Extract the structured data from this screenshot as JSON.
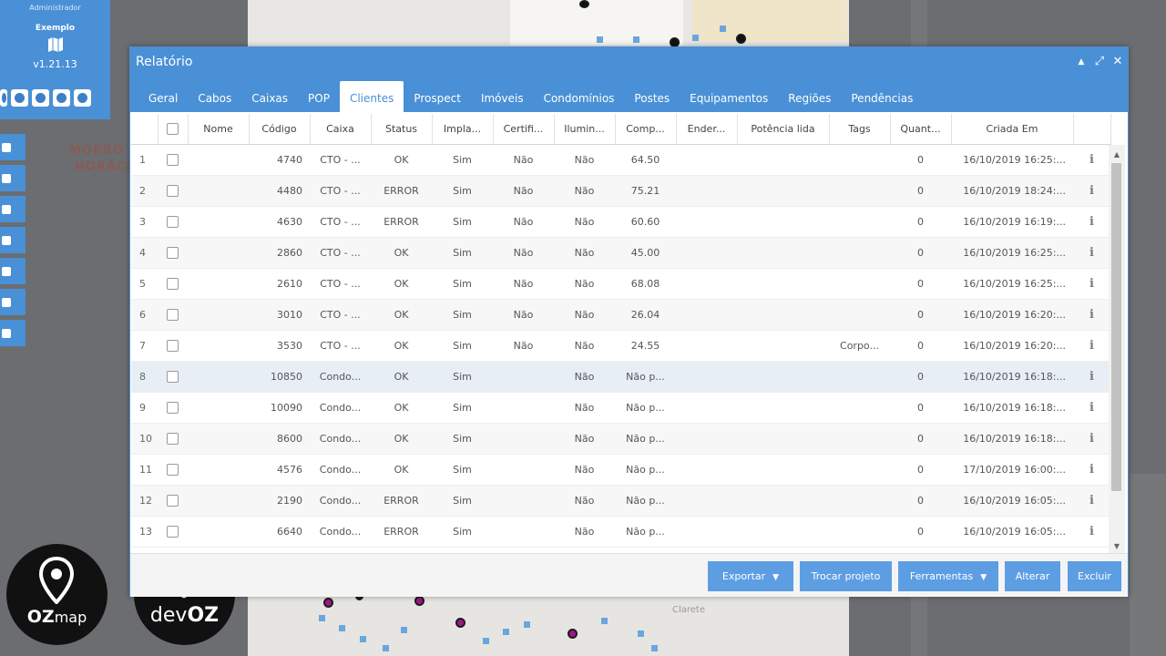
{
  "left_panel": {
    "user_role": "Administrador",
    "project_name": "Exemplo",
    "version": "v1.21.13",
    "icons": [
      "refresh-icon",
      "settings-icon",
      "help-icon",
      "chat-icon",
      "logout-icon"
    ]
  },
  "side_tools": [
    "plus-icon",
    "menu-icon",
    "layers-icon",
    "cloud-icon",
    "pin-icon",
    "truck-icon",
    "wifi-icon"
  ],
  "map": {
    "label_1": "MORRO D",
    "label_2": "HORÁCI",
    "label_3": "Clarete"
  },
  "logos": {
    "ozmap_text_1": "OZ",
    "ozmap_text_2": "map",
    "devoz_text_1": "dev",
    "devoz_text_2": "OZ"
  },
  "dialog": {
    "title": "Relatório",
    "controls": {
      "minimize": "▲",
      "expand": "⤢",
      "close": "✕"
    },
    "tabs": [
      "Geral",
      "Cabos",
      "Caixas",
      "POP",
      "Clientes",
      "Prospect",
      "Imóveis",
      "Condomínios",
      "Postes",
      "Equipamentos",
      "Regiões",
      "Pendências"
    ],
    "active_tab": "Clientes",
    "columns": [
      "",
      "",
      "Nome",
      "Código",
      "Caixa",
      "Status",
      "Impla...",
      "Certifi...",
      "Ilumin...",
      "Comp...",
      "Ender...",
      "Potência lida",
      "Tags",
      "Quant...",
      "Criada Em",
      ""
    ],
    "rows": [
      {
        "n": "1",
        "nome": "",
        "codigo": "4740",
        "caixa": "CTO - ...",
        "status": "OK",
        "impl": "Sim",
        "cert": "Não",
        "ilum": "Não",
        "comp": "64.50",
        "ender": "",
        "potencia": "",
        "tags": "",
        "quant": "0",
        "criada": "16/10/2019 16:25:..."
      },
      {
        "n": "2",
        "nome": "",
        "codigo": "4480",
        "caixa": "CTO - ...",
        "status": "ERROR",
        "impl": "Sim",
        "cert": "Não",
        "ilum": "Não",
        "comp": "75.21",
        "ender": "",
        "potencia": "",
        "tags": "",
        "quant": "0",
        "criada": "16/10/2019 18:24:..."
      },
      {
        "n": "3",
        "nome": "",
        "codigo": "4630",
        "caixa": "CTO - ...",
        "status": "ERROR",
        "impl": "Sim",
        "cert": "Não",
        "ilum": "Não",
        "comp": "60.60",
        "ender": "",
        "potencia": "",
        "tags": "",
        "quant": "0",
        "criada": "16/10/2019 16:19:..."
      },
      {
        "n": "4",
        "nome": "",
        "codigo": "2860",
        "caixa": "CTO - ...",
        "status": "OK",
        "impl": "Sim",
        "cert": "Não",
        "ilum": "Não",
        "comp": "45.00",
        "ender": "",
        "potencia": "",
        "tags": "",
        "quant": "0",
        "criada": "16/10/2019 16:25:..."
      },
      {
        "n": "5",
        "nome": "",
        "codigo": "2610",
        "caixa": "CTO - ...",
        "status": "OK",
        "impl": "Sim",
        "cert": "Não",
        "ilum": "Não",
        "comp": "68.08",
        "ender": "",
        "potencia": "",
        "tags": "",
        "quant": "0",
        "criada": "16/10/2019 16:25:..."
      },
      {
        "n": "6",
        "nome": "",
        "codigo": "3010",
        "caixa": "CTO - ...",
        "status": "OK",
        "impl": "Sim",
        "cert": "Não",
        "ilum": "Não",
        "comp": "26.04",
        "ender": "",
        "potencia": "",
        "tags": "",
        "quant": "0",
        "criada": "16/10/2019 16:20:..."
      },
      {
        "n": "7",
        "nome": "",
        "codigo": "3530",
        "caixa": "CTO - ...",
        "status": "OK",
        "impl": "Sim",
        "cert": "Não",
        "ilum": "Não",
        "comp": "24.55",
        "ender": "",
        "potencia": "",
        "tags": "Corpo...",
        "quant": "0",
        "criada": "16/10/2019 16:20:..."
      },
      {
        "n": "8",
        "nome": "",
        "codigo": "10850",
        "caixa": "Condo...",
        "status": "OK",
        "impl": "Sim",
        "cert": "",
        "ilum": "Não",
        "comp": "Não p...",
        "ender": "",
        "potencia": "",
        "tags": "",
        "quant": "0",
        "criada": "16/10/2019 16:18:..."
      },
      {
        "n": "9",
        "nome": "",
        "codigo": "10090",
        "caixa": "Condo...",
        "status": "OK",
        "impl": "Sim",
        "cert": "",
        "ilum": "Não",
        "comp": "Não p...",
        "ender": "",
        "potencia": "",
        "tags": "",
        "quant": "0",
        "criada": "16/10/2019 16:18:..."
      },
      {
        "n": "10",
        "nome": "",
        "codigo": "8600",
        "caixa": "Condo...",
        "status": "OK",
        "impl": "Sim",
        "cert": "",
        "ilum": "Não",
        "comp": "Não p...",
        "ender": "",
        "potencia": "",
        "tags": "",
        "quant": "0",
        "criada": "16/10/2019 16:18:..."
      },
      {
        "n": "11",
        "nome": "",
        "codigo": "4576",
        "caixa": "Condo...",
        "status": "OK",
        "impl": "Sim",
        "cert": "",
        "ilum": "Não",
        "comp": "Não p...",
        "ender": "",
        "potencia": "",
        "tags": "",
        "quant": "0",
        "criada": "17/10/2019 16:00:..."
      },
      {
        "n": "12",
        "nome": "",
        "codigo": "2190",
        "caixa": "Condo...",
        "status": "ERROR",
        "impl": "Sim",
        "cert": "",
        "ilum": "Não",
        "comp": "Não p...",
        "ender": "",
        "potencia": "",
        "tags": "",
        "quant": "0",
        "criada": "16/10/2019 16:05:..."
      },
      {
        "n": "13",
        "nome": "",
        "codigo": "6640",
        "caixa": "Condo...",
        "status": "ERROR",
        "impl": "Sim",
        "cert": "",
        "ilum": "Não",
        "comp": "Não p...",
        "ender": "",
        "potencia": "",
        "tags": "",
        "quant": "0",
        "criada": "16/10/2019 16:05:..."
      }
    ],
    "info_glyph": "i",
    "selected_row": 8,
    "buttons": {
      "exportar": "Exportar",
      "trocar": "Trocar projeto",
      "ferramentas": "Ferramentas",
      "alterar": "Alterar",
      "excluir": "Excluir",
      "caret": "▼"
    },
    "scroll": {
      "up": "▲",
      "down": "▼"
    }
  },
  "colors": {
    "accent": "#4a90d6",
    "button": "#5d9ee3",
    "marker": "#a0158a"
  }
}
